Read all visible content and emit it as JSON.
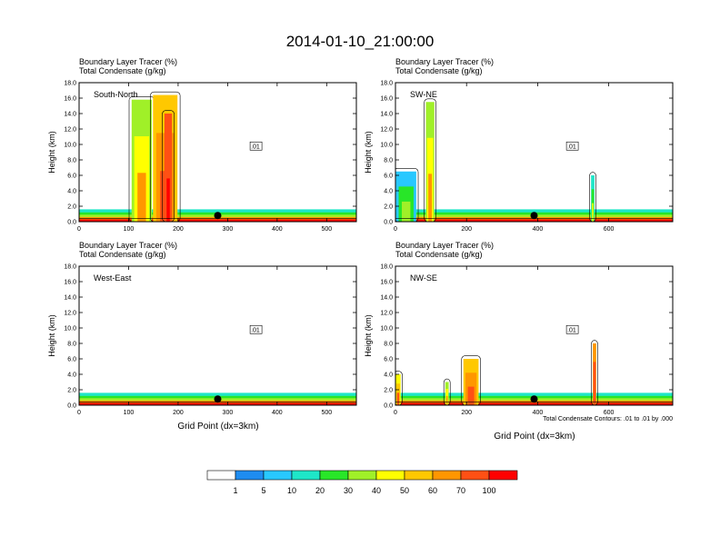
{
  "title": "2014-01-10_21:00:00",
  "panel_header_line1": "Boundary Layer Tracer   (%)",
  "panel_header_line2": "Total Condensate   (g/kg)",
  "ylabel": "Height (km)",
  "xlabel": "Grid Point (dx=3km)",
  "contour_note": "Total Condensate Contours: .01 to .01 by .000",
  "chart_data": [
    {
      "type": "heatmap",
      "panel": "South-North",
      "xlim": [
        0,
        560
      ],
      "ylim": [
        0,
        18
      ],
      "xticks": [
        "0",
        "100",
        "200",
        "300",
        "400",
        "500"
      ],
      "xtick_values": [
        0,
        100,
        200,
        300,
        400,
        500
      ],
      "yticks": [
        "0.0",
        "2.0",
        "4.0",
        "6.0",
        "8.0",
        "10.0",
        "12.0",
        "14.0",
        "16.0",
        "18.0"
      ],
      "ytick_values": [
        0,
        2,
        4,
        6,
        8,
        10,
        12,
        14,
        16,
        18
      ],
      "contour_label": ".01",
      "marker_x": 280,
      "plumes": [
        {
          "x0": 105,
          "x1": 148,
          "top": 15.8,
          "level": 30
        },
        {
          "x0": 148,
          "x1": 200,
          "top": 16.4,
          "level": 50
        },
        {
          "x0": 172,
          "x1": 188,
          "top": 14,
          "level": 70
        }
      ]
    },
    {
      "type": "heatmap",
      "panel": "SW-NE",
      "xlim": [
        0,
        780
      ],
      "ylim": [
        0,
        18
      ],
      "xticks": [
        "0",
        "200",
        "400",
        "600"
      ],
      "xtick_values": [
        0,
        200,
        400,
        600
      ],
      "yticks": [
        "0.0",
        "2.0",
        "4.0",
        "6.0",
        "8.0",
        "10.0",
        "12.0",
        "14.0",
        "16.0",
        "18.0"
      ],
      "ytick_values": [
        0,
        2,
        4,
        6,
        8,
        10,
        12,
        14,
        16,
        18
      ],
      "contour_label": ".01",
      "marker_x": 390,
      "plumes": [
        {
          "x0": 0,
          "x1": 60,
          "top": 6.5,
          "level": 5
        },
        {
          "x0": 85,
          "x1": 110,
          "top": 15.5,
          "level": 30
        },
        {
          "x0": 550,
          "x1": 560,
          "top": 6,
          "level": 10
        }
      ]
    },
    {
      "type": "heatmap",
      "panel": "West-East",
      "xlim": [
        0,
        560
      ],
      "ylim": [
        0,
        18
      ],
      "xticks": [
        "0",
        "100",
        "200",
        "300",
        "400",
        "500"
      ],
      "xtick_values": [
        0,
        100,
        200,
        300,
        400,
        500
      ],
      "yticks": [
        "0.0",
        "2.0",
        "4.0",
        "6.0",
        "8.0",
        "10.0",
        "12.0",
        "14.0",
        "16.0",
        "18.0"
      ],
      "ytick_values": [
        0,
        2,
        4,
        6,
        8,
        10,
        12,
        14,
        16,
        18
      ],
      "contour_label": ".01",
      "marker_x": 280,
      "plumes": []
    },
    {
      "type": "heatmap",
      "panel": "NW-SE",
      "xlim": [
        0,
        780
      ],
      "ylim": [
        0,
        18
      ],
      "xticks": [
        "0",
        "200",
        "400",
        "600"
      ],
      "xtick_values": [
        0,
        200,
        400,
        600
      ],
      "yticks": [
        "0.0",
        "2.0",
        "4.0",
        "6.0",
        "8.0",
        "10.0",
        "12.0",
        "14.0",
        "16.0",
        "18.0"
      ],
      "ytick_values": [
        0,
        2,
        4,
        6,
        8,
        10,
        12,
        14,
        16,
        18
      ],
      "contour_label": ".01",
      "marker_x": 390,
      "plumes": [
        {
          "x0": 0,
          "x1": 15,
          "top": 4,
          "level": 40
        },
        {
          "x0": 140,
          "x1": 150,
          "top": 3,
          "level": 30
        },
        {
          "x0": 190,
          "x1": 235,
          "top": 6,
          "level": 50
        },
        {
          "x0": 555,
          "x1": 565,
          "top": 8,
          "level": 60
        }
      ]
    }
  ],
  "colorbar": {
    "labels": [
      "1",
      "5",
      "10",
      "20",
      "30",
      "40",
      "50",
      "60",
      "70",
      "100"
    ],
    "colors": [
      "#ffffff",
      "#1e8cf0",
      "#28c8ff",
      "#1ee6c8",
      "#28e628",
      "#a0f028",
      "#ffff00",
      "#ffc800",
      "#ff9600",
      "#ff5014",
      "#ff0000"
    ]
  }
}
